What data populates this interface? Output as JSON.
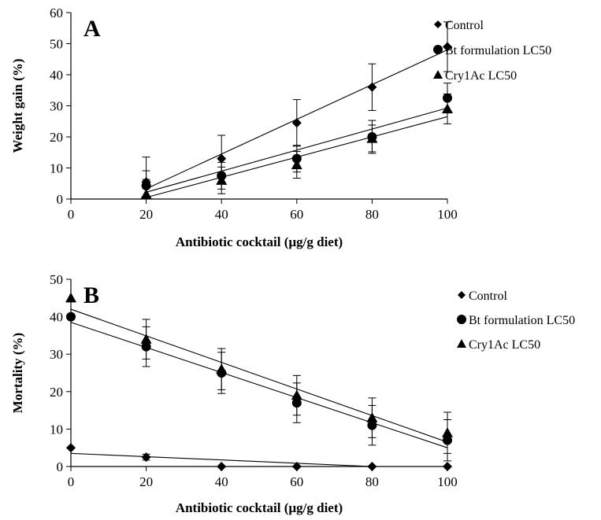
{
  "chart_data": [
    {
      "type": "scatter",
      "panel_label": "A",
      "xlabel": "Antibiotic cocktail (µg/g diet)",
      "ylabel": "Weight gain (%)",
      "xlim": [
        0,
        100
      ],
      "ylim": [
        0,
        60
      ],
      "x_ticks": [
        0,
        20,
        40,
        60,
        80,
        100
      ],
      "y_ticks": [
        0,
        10,
        20,
        30,
        40,
        50,
        60
      ],
      "grid": false,
      "legend_position": "right",
      "x": [
        20,
        40,
        60,
        80,
        100
      ],
      "series": [
        {
          "name": "Control",
          "marker": "diamond",
          "values": [
            5.5,
            13,
            24.5,
            36,
            49
          ],
          "errors": [
            8,
            7.5,
            7.5,
            7.5,
            8
          ],
          "trendline": {
            "x": [
              20,
              100
            ],
            "y": [
              3.3,
              48
            ]
          }
        },
        {
          "name": "Bt formulation LC50",
          "marker": "circle",
          "values": [
            4.3,
            7.5,
            13,
            20,
            32.5
          ],
          "errors": [
            4.8,
            4.3,
            4.3,
            5.3,
            4.8
          ],
          "trendline": {
            "x": [
              20,
              100
            ],
            "y": [
              2.2,
              29.3
            ]
          }
        },
        {
          "name": "Cry1Ac LC50",
          "marker": "triangle",
          "values": [
            1.5,
            6,
            11,
            19.5,
            29
          ],
          "errors": [
            4.8,
            4.3,
            4.3,
            4.3,
            4.8
          ],
          "trendline": {
            "x": [
              20,
              100
            ],
            "y": [
              0.5,
              26.5
            ]
          }
        }
      ]
    },
    {
      "type": "scatter",
      "panel_label": "B",
      "xlabel": "Antibiotic cocktail (µg/g diet)",
      "ylabel": "Mortality (%)",
      "xlim": [
        0,
        100
      ],
      "ylim": [
        0,
        50
      ],
      "x_ticks": [
        0,
        20,
        40,
        60,
        80,
        100
      ],
      "y_ticks": [
        0,
        10,
        20,
        30,
        40,
        50
      ],
      "grid": false,
      "legend_position": "right",
      "x": [
        0,
        20,
        40,
        60,
        80,
        100
      ],
      "series": [
        {
          "name": "Control",
          "marker": "diamond",
          "values": [
            5,
            2.5,
            0,
            0,
            0,
            0
          ],
          "errors": [
            0,
            0.8,
            0,
            0,
            0,
            0
          ],
          "trendline": {
            "x": [
              0,
              80
            ],
            "y": [
              3.5,
              0
            ]
          }
        },
        {
          "name": "Bt formulation LC50",
          "marker": "circle",
          "values": [
            40,
            32,
            25,
            17,
            11,
            7
          ],
          "errors": [
            0,
            5.3,
            5.5,
            5.3,
            5.3,
            5.5
          ],
          "trendline": {
            "x": [
              0,
              100
            ],
            "y": [
              38.5,
              5
            ]
          }
        },
        {
          "name": "Cry1Ac LC50",
          "marker": "triangle",
          "values": [
            45,
            34,
            26,
            19,
            13,
            9
          ],
          "errors": [
            0,
            5.3,
            5.5,
            5.3,
            5.3,
            5.5
          ],
          "trendline": {
            "x": [
              0,
              100
            ],
            "y": [
              42,
              6.5
            ]
          }
        }
      ]
    }
  ]
}
